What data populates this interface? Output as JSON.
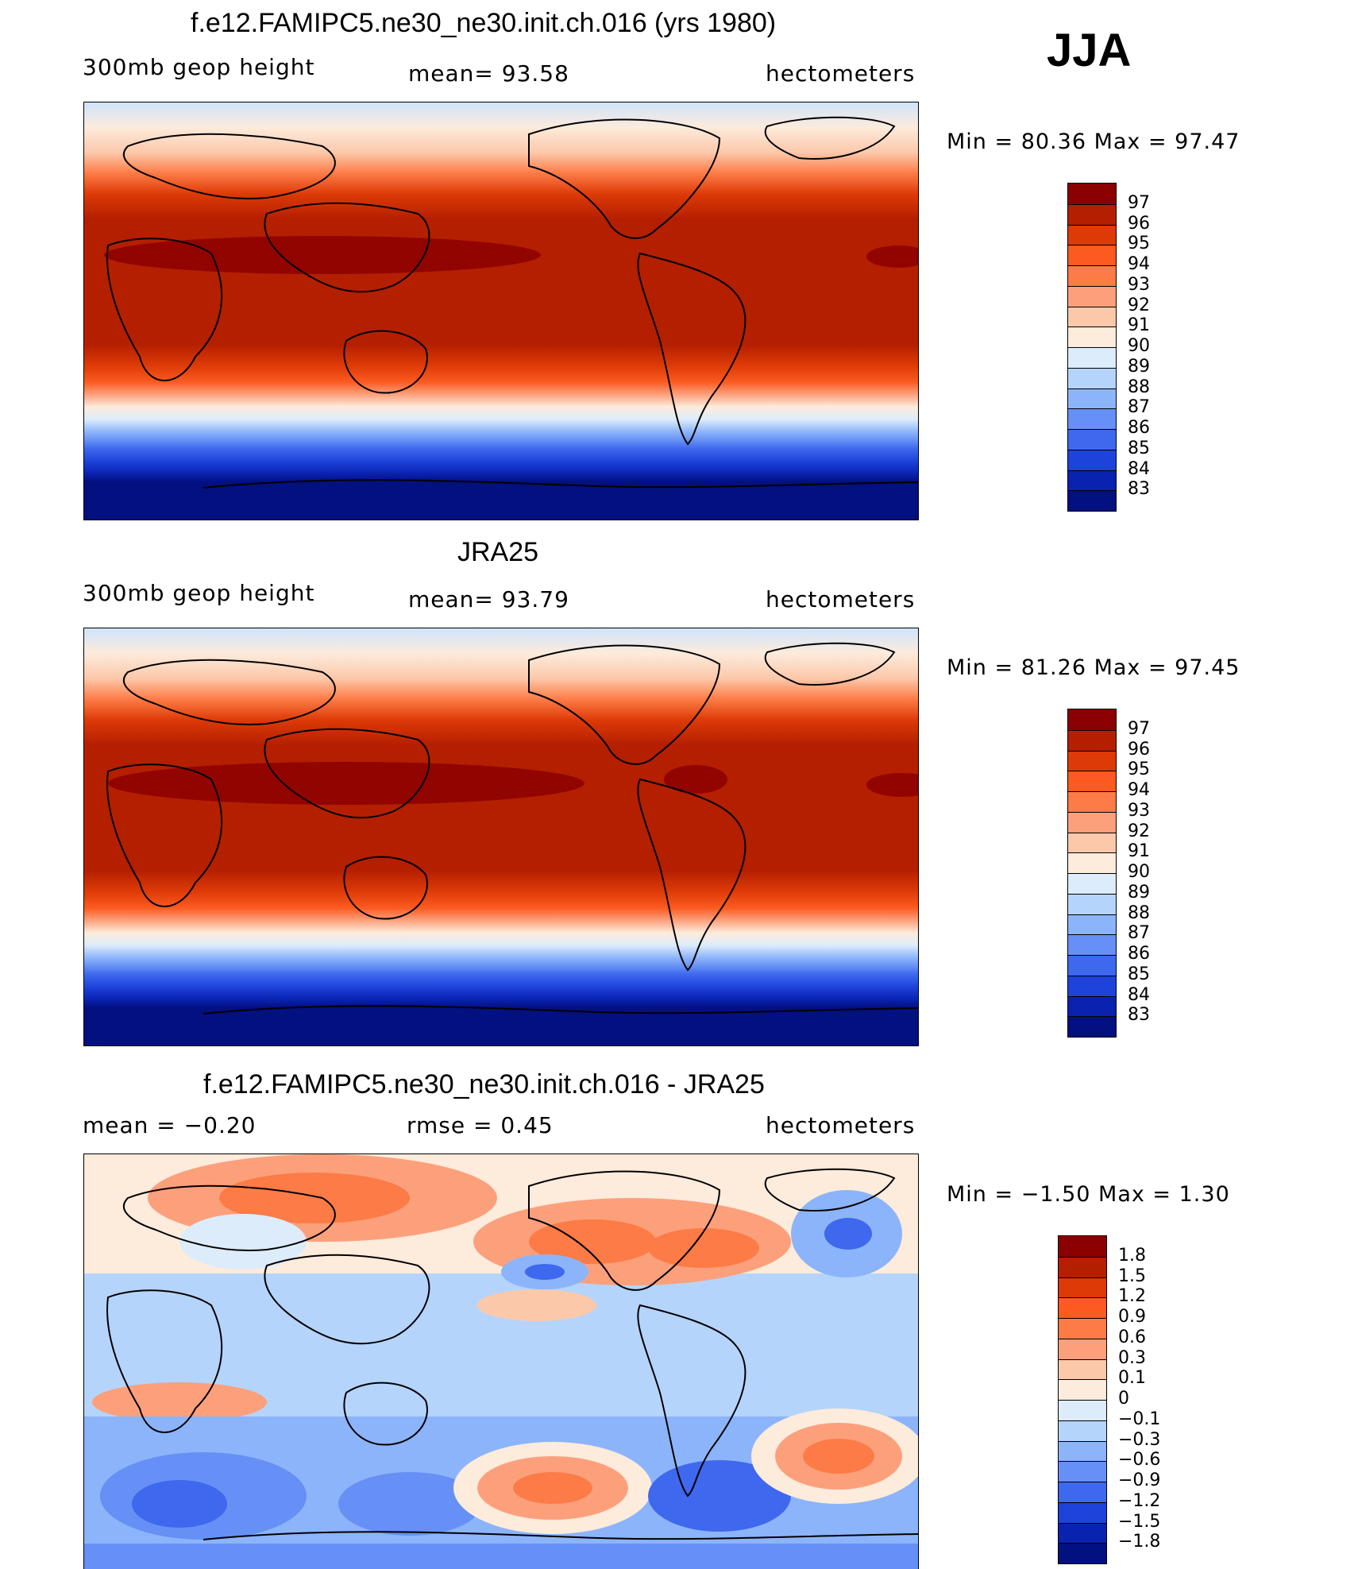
{
  "season": "JJA",
  "panels": [
    {
      "title": "f.e12.FAMIPC5.ne30_ne30.init.ch.016 (yrs 1980)",
      "left": "300mb  geop  height",
      "center": "mean=   93.58",
      "right": "hectometers",
      "minmax": "Min  =    80.36  Max  =    97.47"
    },
    {
      "title": "JRA25",
      "left": "300mb  geop  height",
      "center": "mean=   93.79",
      "right": "hectometers",
      "minmax": "Min  =    81.26  Max  =    97.45"
    },
    {
      "title": "f.e12.FAMIPC5.ne30_ne30.init.ch.016 - JRA25",
      "left": "mean  =    −0.20",
      "center": "rmse  =     0.45",
      "right": "hectometers",
      "minmax": "Min  =    −1.50  Max  =      1.30"
    }
  ],
  "colorbars": {
    "absolute": {
      "labels": [
        "97",
        "96",
        "95",
        "94",
        "93",
        "92",
        "91",
        "90",
        "89",
        "88",
        "87",
        "86",
        "85",
        "84",
        "83"
      ],
      "colors": [
        "#8b0000",
        "#b41f00",
        "#dd3a07",
        "#fb5a20",
        "#fd7b46",
        "#fca07c",
        "#fcc8aa",
        "#fdebdc",
        "#dcecfb",
        "#b5d4fb",
        "#8cb4fa",
        "#6690f5",
        "#3e68ed",
        "#1d43db",
        "#0a22b0",
        "#021080"
      ]
    },
    "difference": {
      "labels": [
        "1.8",
        "1.5",
        "1.2",
        "0.9",
        "0.6",
        "0.3",
        "0.1",
        "0",
        "−0.1",
        "−0.3",
        "−0.6",
        "−0.9",
        "−1.2",
        "−1.5",
        "−1.8"
      ],
      "colors": [
        "#8b0000",
        "#b41f00",
        "#dd3a07",
        "#fb5a20",
        "#fd7b46",
        "#fca07c",
        "#fcc8aa",
        "#fdebdc",
        "#dcecfb",
        "#b5d4fb",
        "#8cb4fa",
        "#6690f5",
        "#3e68ed",
        "#1d43db",
        "#0a22b0",
        "#021080"
      ]
    }
  },
  "chart_data": [
    {
      "type": "heatmap",
      "title": "f.e12.FAMIPC5.ne30_ne30.init.ch.016 (yrs 1980)",
      "variable": "300mb geop height",
      "units": "hectometers",
      "mean": 93.58,
      "min": 80.36,
      "max": 97.47,
      "levels": [
        83,
        84,
        85,
        86,
        87,
        88,
        89,
        90,
        91,
        92,
        93,
        94,
        95,
        96,
        97
      ]
    },
    {
      "type": "heatmap",
      "title": "JRA25",
      "variable": "300mb geop height",
      "units": "hectometers",
      "mean": 93.79,
      "min": 81.26,
      "max": 97.45,
      "levels": [
        83,
        84,
        85,
        86,
        87,
        88,
        89,
        90,
        91,
        92,
        93,
        94,
        95,
        96,
        97
      ]
    },
    {
      "type": "heatmap",
      "title": "f.e12.FAMIPC5.ne30_ne30.init.ch.016 - JRA25",
      "units": "hectometers",
      "mean": -0.2,
      "rmse": 0.45,
      "min": -1.5,
      "max": 1.3,
      "levels": [
        -1.8,
        -1.5,
        -1.2,
        -0.9,
        -0.6,
        -0.3,
        -0.1,
        0,
        0.1,
        0.3,
        0.6,
        0.9,
        1.2,
        1.5,
        1.8
      ]
    }
  ]
}
